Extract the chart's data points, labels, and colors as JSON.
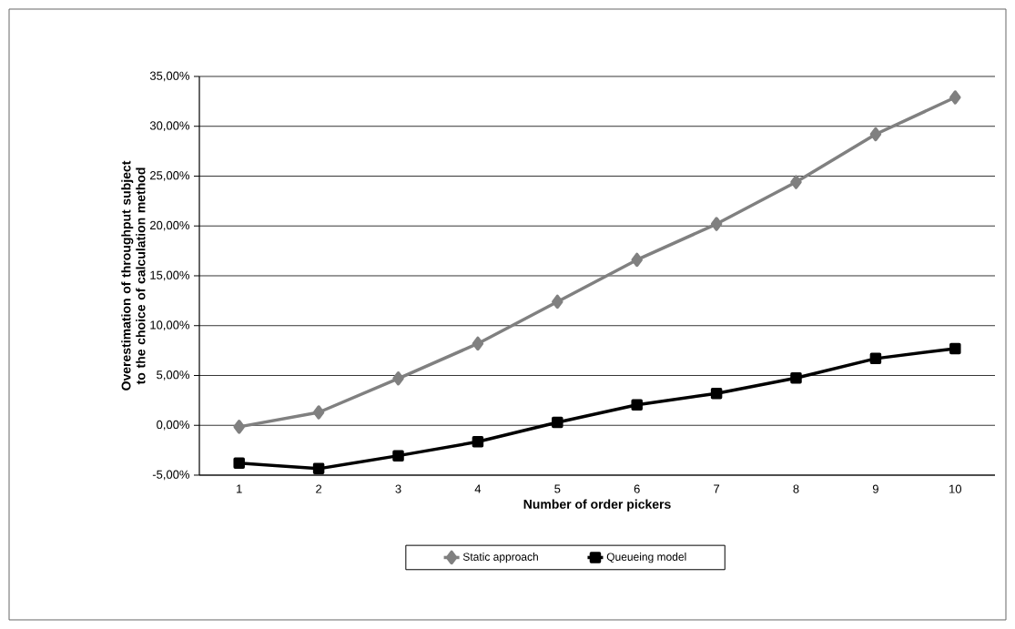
{
  "chart_data": {
    "type": "line",
    "xlabel": "Number of order pickers",
    "ylabel": "Overestimation of throughput subject to the choice of calculation method",
    "categories": [
      "1",
      "2",
      "3",
      "4",
      "5",
      "6",
      "7",
      "8",
      "9",
      "10"
    ],
    "series": [
      {
        "name": "Static approach",
        "color": "#808080",
        "marker": "diamond",
        "values": [
          -0.15,
          1.3,
          4.7,
          8.2,
          12.4,
          16.6,
          20.2,
          24.4,
          29.2,
          32.9
        ]
      },
      {
        "name": "Queueing model",
        "color": "#000000",
        "marker": "square",
        "values": [
          -3.8,
          -4.35,
          -3.05,
          -1.65,
          0.3,
          2.05,
          3.2,
          4.75,
          6.7,
          7.7
        ]
      }
    ],
    "ylim": [
      -5,
      35
    ],
    "yticks": [
      {
        "value": -5,
        "label": "-5,00%"
      },
      {
        "value": 0,
        "label": "0,00%"
      },
      {
        "value": 5,
        "label": "5,00%"
      },
      {
        "value": 10,
        "label": "10,00%"
      },
      {
        "value": 15,
        "label": "15,00%"
      },
      {
        "value": 20,
        "label": "20,00%"
      },
      {
        "value": 25,
        "label": "25,00%"
      },
      {
        "value": 30,
        "label": "30,00%"
      },
      {
        "value": 35,
        "label": "35,00%"
      }
    ],
    "grid": "y",
    "legend": "bottom"
  }
}
